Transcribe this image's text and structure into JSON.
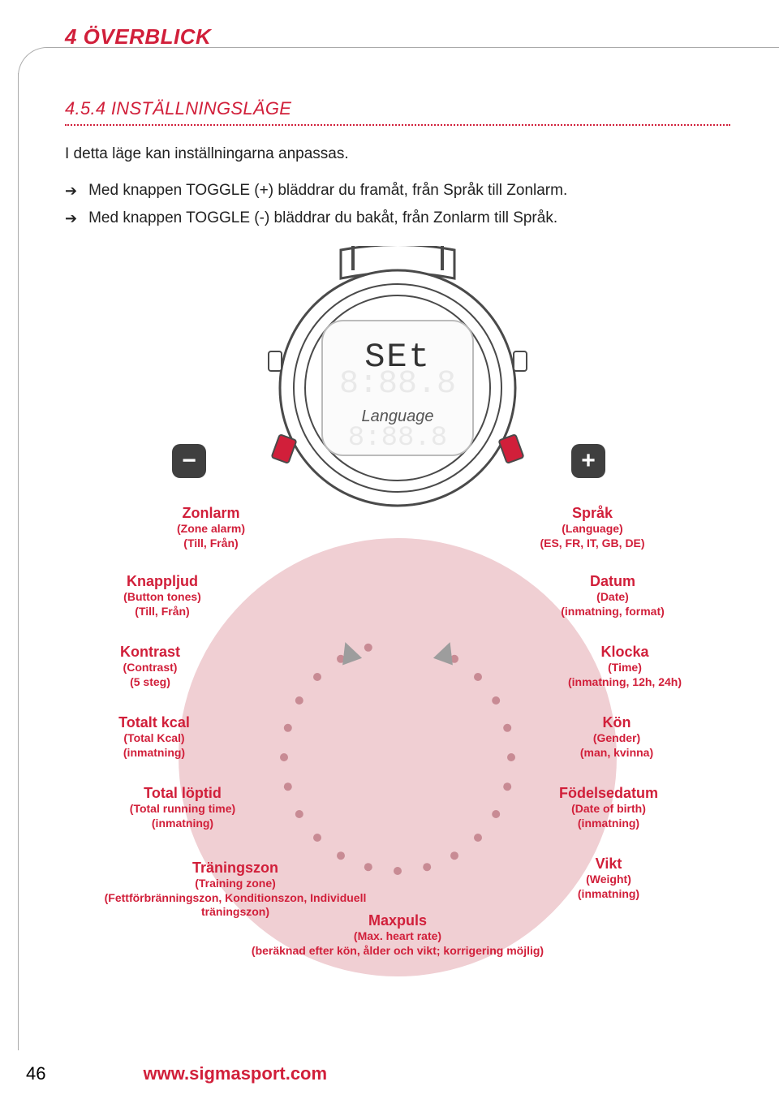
{
  "colors": {
    "accent": "#d11f3a",
    "pink": "#f0cfd3",
    "dot": "#c88b94",
    "arrow": "#9d9d9d",
    "watch_outline": "#4a4a4a",
    "watch_button": "#d11f3a",
    "badge_bg": "#3f3f3f",
    "ghost": "#e9e9e9",
    "text": "#222222",
    "border": "#aaaaaa"
  },
  "header": {
    "chapter": "4 ÖVERBLICK",
    "section": "4.5.4 INSTÄLLNINGSLÄGE"
  },
  "intro": "I detta läge kan inställningarna anpassas.",
  "bullets": [
    "Med knappen TOGGLE (+) bläddrar du framåt, från Språk till Zonlarm.",
    "Med knappen TOGGLE (-) bläddrar du bakåt, från Zonlarm till Språk."
  ],
  "watch": {
    "main_text": "SEt",
    "sub_text": "Language",
    "minus": "−",
    "plus": "+"
  },
  "ring": {
    "radius": 140,
    "n_dots": 24,
    "dot_r": 5,
    "dot_color": "#c88b94",
    "arrow_color": "#9d9d9d",
    "gap_start_deg": -115,
    "gap_end_deg": -65
  },
  "labels": {
    "zonlarm": {
      "t1": "Zonlarm",
      "t2": "(Zone alarm)",
      "t3": "(Till, Från)"
    },
    "sprak": {
      "t1": "Språk",
      "t2": "(Language)",
      "t3": "(ES, FR, IT, GB, DE)"
    },
    "knapp": {
      "t1": "Knappljud",
      "t2": "(Button tones)",
      "t3": "(Till, Från)"
    },
    "datum": {
      "t1": "Datum",
      "t2": "(Date)",
      "t3": "(inmatning, format)"
    },
    "kontrast": {
      "t1": "Kontrast",
      "t2": "(Contrast)",
      "t3": "(5 steg)"
    },
    "klocka": {
      "t1": "Klocka",
      "t2": "(Time)",
      "t3": "(inmatning, 12h, 24h)"
    },
    "totkcal": {
      "t1": "Totalt kcal",
      "t2": "(Total Kcal)",
      "t3": "(inmatning)"
    },
    "kon": {
      "t1": "Kön",
      "t2": "(Gender)",
      "t3": "(man, kvinna)"
    },
    "loptid": {
      "t1": "Total löptid",
      "t2": "(Total running time)",
      "t3": "(inmatning)"
    },
    "fodelse": {
      "t1": "Födelsedatum",
      "t2": "(Date of birth)",
      "t3": "(inmatning)"
    },
    "trzone": {
      "t1": "Träningszon",
      "t2": "(Training zone)",
      "t3": "(Fettförbränningszon, Konditionszon, Individuell träningszon)"
    },
    "vikt": {
      "t1": "Vikt",
      "t2": "(Weight)",
      "t3": "(inmatning)"
    },
    "maxpuls": {
      "t1": "Maxpuls",
      "t2": "(Max. heart rate)",
      "t3": "(beräknad efter kön, ålder och vikt; korrigering möjlig)"
    }
  },
  "footer": {
    "page": "46",
    "url": "www.sigmasport.com"
  }
}
